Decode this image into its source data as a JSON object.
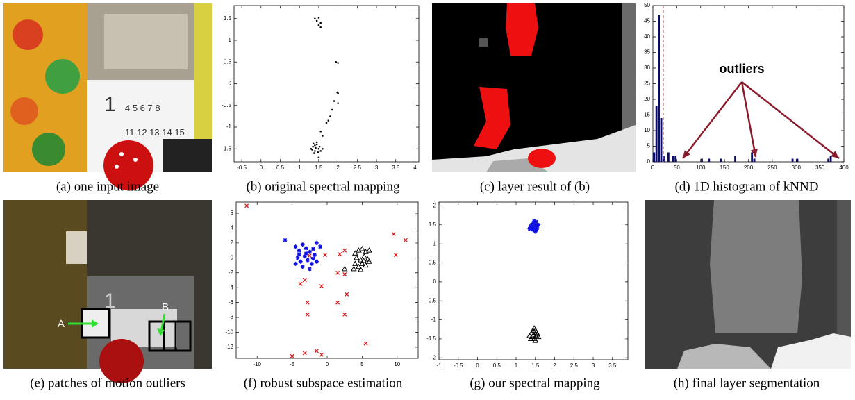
{
  "panels": [
    {
      "caption": "(a) one input image"
    },
    {
      "caption": "(b) original spectral mapping",
      "chart": {
        "type": "scatter",
        "xlim": [
          -0.7,
          4.1
        ],
        "ylim": [
          -1.8,
          1.8
        ],
        "xticks": [
          -0.5,
          0,
          0.5,
          1,
          1.5,
          2,
          2.5,
          3,
          3.5,
          4
        ],
        "yticks": [
          -1.5,
          -1,
          -0.5,
          0,
          0.5,
          1,
          1.5
        ],
        "series": [
          {
            "color": "#000000",
            "marker": "dot",
            "x": [
              1.4,
              1.45,
              1.5,
              1.55,
              1.5,
              1.55,
              1.95,
              2.0,
              1.98,
              2.0,
              2.0,
              1.9,
              1.85,
              1.8,
              1.75,
              1.7,
              1.55,
              1.6,
              1.3,
              1.35,
              1.4,
              1.45,
              1.5,
              1.38,
              1.42,
              1.48,
              1.33,
              1.52,
              1.45,
              1.55,
              1.4,
              1.6,
              1.5,
              1.36
            ],
            "y": [
              1.5,
              1.45,
              1.52,
              1.4,
              1.35,
              1.3,
              0.5,
              0.48,
              -0.2,
              -0.22,
              -0.45,
              -0.4,
              -0.6,
              -0.75,
              -0.85,
              -0.9,
              -1.1,
              -1.2,
              -1.5,
              -1.45,
              -1.55,
              -1.4,
              -1.5,
              -1.6,
              -1.48,
              -1.58,
              -1.52,
              -1.45,
              -1.35,
              -1.55,
              -1.42,
              -1.5,
              -1.7,
              -1.38
            ]
          }
        ]
      }
    },
    {
      "caption": "(c) layer result of (b)"
    },
    {
      "caption": "(d) 1D histogram of kNND",
      "chart": {
        "type": "histogram",
        "xlim": [
          0,
          400
        ],
        "ylim": [
          0,
          50
        ],
        "xticks": [
          0,
          50,
          100,
          150,
          200,
          250,
          300,
          350,
          400
        ],
        "yticks": [
          0,
          5,
          10,
          15,
          20,
          25,
          30,
          35,
          40,
          45,
          50
        ],
        "color": "#0b0b6b",
        "ref_line": 22,
        "ref_color": "#e06060",
        "annotation": "outliers",
        "annotation_color": "#8b1a2b",
        "bins": [
          0,
          5,
          10,
          15,
          20,
          25,
          30,
          35,
          40,
          45,
          50,
          55,
          60,
          65,
          70,
          75,
          80,
          85,
          90,
          95,
          100,
          105,
          110,
          115,
          120,
          125,
          130,
          135,
          140,
          145,
          150,
          155,
          160,
          165,
          170,
          175,
          180,
          185,
          190,
          195,
          200,
          205,
          210,
          215,
          220,
          225,
          230,
          235,
          240,
          245,
          250,
          255,
          260,
          265,
          270,
          275,
          280,
          285,
          290,
          295,
          300,
          305,
          310,
          315,
          320,
          325,
          330,
          335,
          340,
          345,
          350,
          355,
          360,
          365,
          370,
          375,
          380
        ],
        "counts": [
          3,
          18,
          47,
          14,
          2,
          0,
          3,
          0,
          2,
          2,
          0,
          0,
          0,
          0,
          0,
          0,
          0,
          0,
          0,
          0,
          1,
          0,
          0,
          1,
          0,
          0,
          0,
          0,
          1,
          0,
          0,
          0,
          0,
          0,
          2,
          0,
          0,
          0,
          0,
          0,
          0,
          3,
          1,
          0,
          0,
          0,
          0,
          0,
          0,
          0,
          0,
          0,
          0,
          0,
          0,
          0,
          0,
          0,
          1,
          0,
          1,
          0,
          0,
          0,
          0,
          0,
          0,
          0,
          0,
          0,
          0,
          0,
          0,
          1,
          2,
          0
        ]
      }
    },
    {
      "caption": "(e) patches of motion outliers",
      "labels": [
        "A",
        "B"
      ]
    },
    {
      "caption": "(f) robust subspace estimation",
      "chart": {
        "type": "scatter",
        "xlim": [
          -13,
          13
        ],
        "ylim": [
          -13.5,
          7.5
        ],
        "xticks": [
          -10,
          -5,
          0,
          5,
          10
        ],
        "yticks": [
          -12,
          -10,
          -8,
          -6,
          -4,
          -2,
          0,
          2,
          4,
          6
        ],
        "series": [
          {
            "color": "#1010e0",
            "marker": "star",
            "x": [
              -6,
              -4.5,
              -4,
              -3.5,
              -3,
              -2.5,
              -2,
              -1.5,
              -1,
              -4.2,
              -3.8,
              -3.2,
              -2.8,
              -2.2,
              -1.8,
              -3.5,
              -2.5,
              -4.5,
              -1.5,
              -3,
              -2,
              -4
            ],
            "y": [
              2.4,
              1.5,
              1,
              1.8,
              1.3,
              0.8,
              1.2,
              2,
              1.5,
              0,
              -0.5,
              0.2,
              -0.3,
              -0.8,
              0.4,
              -1.2,
              -1.5,
              -0.8,
              -0.5,
              0.6,
              -0.1,
              0.5
            ]
          },
          {
            "color": "#e01010",
            "marker": "x",
            "x": [
              -11.5,
              9.5,
              11.2,
              9.8,
              -0.3,
              1.8,
              2.5,
              1.5,
              2.5,
              -3.8,
              -3.2,
              -0.8,
              2.8,
              -2.8,
              1.5,
              -2.8,
              2.5,
              5.5,
              -3.2,
              -5,
              -0.8,
              -1.5,
              -2.5
            ],
            "y": [
              7,
              3.2,
              2.4,
              0.4,
              0.4,
              0.5,
              1,
              -2,
              -2.2,
              -3.5,
              -3,
              -3.8,
              -4.9,
              -6,
              -6,
              -7.6,
              -7.6,
              -11.5,
              -12.8,
              -13.2,
              -13,
              -12.5,
              0.3
            ]
          },
          {
            "color": "#000000",
            "marker": "triangle",
            "x": [
              4,
              4.5,
              5,
              5.5,
              6,
              4.2,
              4.8,
              5.3,
              5.8,
              4,
              4.5,
              5,
              5.5,
              6,
              3.8,
              4.8,
              2.5,
              5.2
            ],
            "y": [
              0.6,
              1,
              1.2,
              0.8,
              1,
              0,
              -0.3,
              0.2,
              -0.2,
              -0.8,
              -1.2,
              -0.8,
              -1,
              -0.5,
              -1.5,
              -1.6,
              -1.5,
              -0.4
            ]
          }
        ]
      }
    },
    {
      "caption": "(g) our spectral mapping",
      "chart": {
        "type": "scatter",
        "xlim": [
          -1,
          3.9
        ],
        "ylim": [
          -2.05,
          2.1
        ],
        "xticks": [
          -1,
          -0.5,
          0,
          0.5,
          1,
          1.5,
          2,
          2.5,
          3,
          3.5
        ],
        "yticks": [
          -2,
          -1.5,
          -1,
          -0.5,
          0,
          0.5,
          1,
          1.5,
          2
        ],
        "series": [
          {
            "color": "#1010e0",
            "marker": "star",
            "x": [
              1.4,
              1.45,
              1.5,
              1.55,
              1.42,
              1.48,
              1.52,
              1.38,
              1.45,
              1.5,
              1.58,
              1.35,
              1.47,
              1.53
            ],
            "y": [
              1.5,
              1.55,
              1.48,
              1.42,
              1.38,
              1.35,
              1.58,
              1.45,
              1.42,
              1.32,
              1.5,
              1.4,
              1.6,
              1.38
            ]
          },
          {
            "color": "#000000",
            "marker": "triangle",
            "x": [
              1.4,
              1.45,
              1.5,
              1.55,
              1.42,
              1.48,
              1.52,
              1.38,
              1.45,
              1.5,
              1.35,
              1.58,
              1.47,
              1.53
            ],
            "y": [
              -1.35,
              -1.3,
              -1.28,
              -1.38,
              -1.45,
              -1.5,
              -1.42,
              -1.5,
              -1.4,
              -1.55,
              -1.42,
              -1.45,
              -1.22,
              -1.33
            ]
          }
        ]
      }
    },
    {
      "caption": "(h) final layer segmentation"
    }
  ]
}
